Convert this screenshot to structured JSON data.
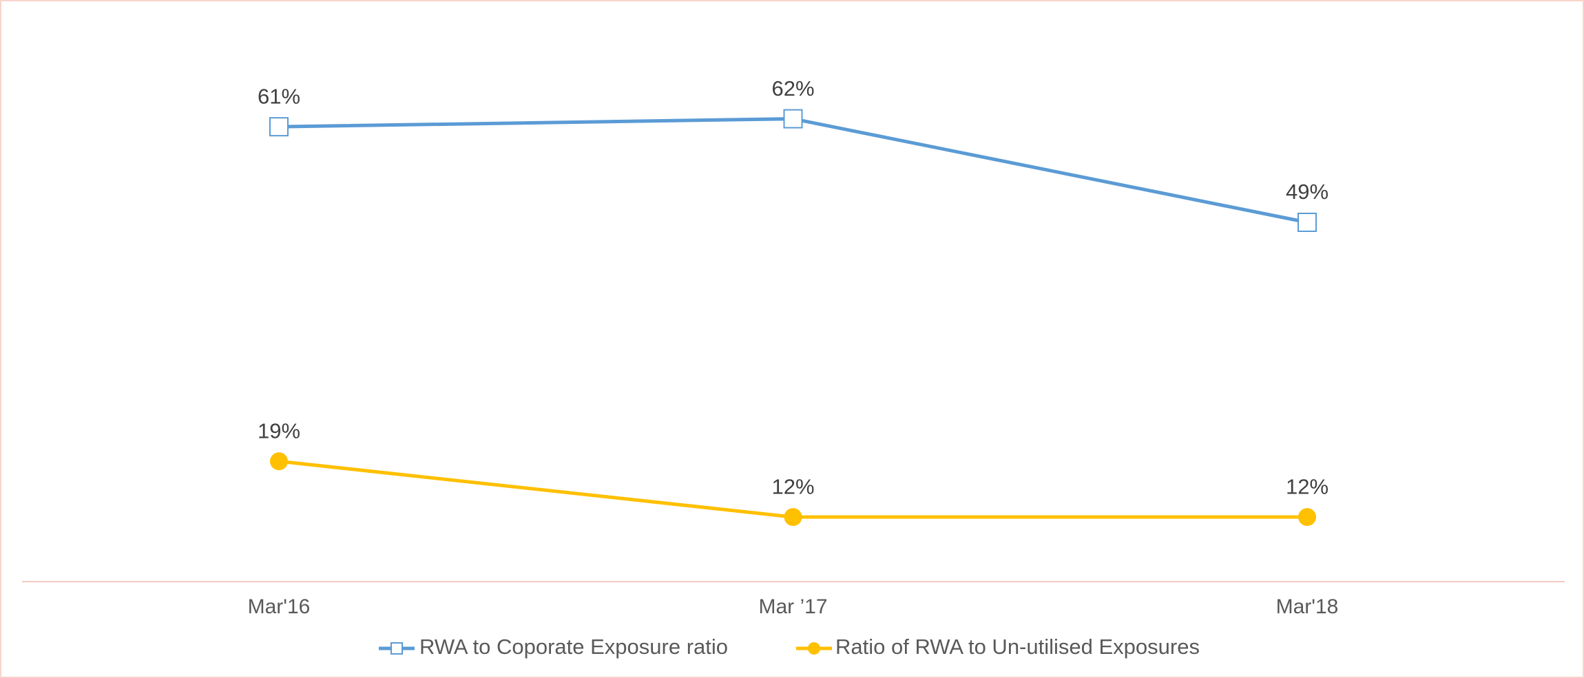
{
  "chart_data": {
    "type": "line",
    "categories": [
      "Mar'16",
      "Mar ’17",
      "Mar'18"
    ],
    "series": [
      {
        "name": "RWA to Coporate Exposure ratio",
        "color": "#5b9bd5",
        "values": [
          61,
          62,
          49
        ],
        "value_labels": [
          "61%",
          "62%",
          "49%"
        ]
      },
      {
        "name": "Ratio of RWA to Un-utilised Exposures",
        "color": "#ffc000",
        "values": [
          19,
          12,
          12
        ],
        "value_labels": [
          "19%",
          "12%",
          "12%"
        ]
      }
    ],
    "ylim": [
      0,
      70
    ],
    "legend": "bottom"
  }
}
